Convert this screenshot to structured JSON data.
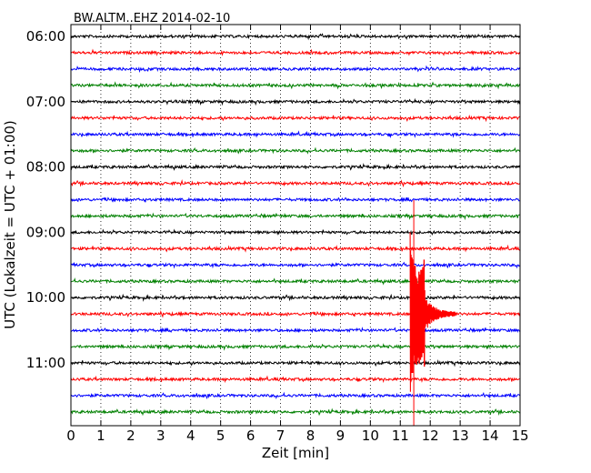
{
  "chart_data": {
    "type": "line",
    "title": "BW.ALTM..EHZ 2014-02-10",
    "xlabel": "Zeit  [min]",
    "ylabel": "UTC (Lokalzeit = UTC + 01:00)",
    "xlim": [
      0,
      15
    ],
    "x_ticks": [
      "0",
      "1",
      "2",
      "3",
      "4",
      "5",
      "6",
      "7",
      "8",
      "9",
      "10",
      "11",
      "12",
      "13",
      "14",
      "15"
    ],
    "y_tick_labels": [
      "06:00",
      "07:00",
      "08:00",
      "09:00",
      "10:00",
      "11:00"
    ],
    "y_tick_rows": [
      0,
      4,
      8,
      12,
      16,
      20
    ],
    "grid": "dotted vertical",
    "row_minutes": 15,
    "start_time": "06:00",
    "colors": [
      "#000000",
      "#ff0000",
      "#0000ff",
      "#008000"
    ],
    "series": [
      {
        "start": "06:00",
        "color": "#000000"
      },
      {
        "start": "06:15",
        "color": "#ff0000"
      },
      {
        "start": "06:30",
        "color": "#0000ff"
      },
      {
        "start": "06:45",
        "color": "#008000"
      },
      {
        "start": "07:00",
        "color": "#000000"
      },
      {
        "start": "07:15",
        "color": "#ff0000"
      },
      {
        "start": "07:30",
        "color": "#0000ff"
      },
      {
        "start": "07:45",
        "color": "#008000"
      },
      {
        "start": "08:00",
        "color": "#000000"
      },
      {
        "start": "08:15",
        "color": "#ff0000"
      },
      {
        "start": "08:30",
        "color": "#0000ff"
      },
      {
        "start": "08:45",
        "color": "#008000"
      },
      {
        "start": "09:00",
        "color": "#000000"
      },
      {
        "start": "09:15",
        "color": "#ff0000"
      },
      {
        "start": "09:30",
        "color": "#0000ff"
      },
      {
        "start": "09:45",
        "color": "#008000"
      },
      {
        "start": "10:00",
        "color": "#000000"
      },
      {
        "start": "10:15",
        "color": "#ff0000"
      },
      {
        "start": "10:30",
        "color": "#0000ff"
      },
      {
        "start": "10:45",
        "color": "#008000"
      },
      {
        "start": "11:00",
        "color": "#000000"
      },
      {
        "start": "11:15",
        "color": "#ff0000"
      },
      {
        "start": "11:30",
        "color": "#0000ff"
      },
      {
        "start": "11:45",
        "color": "#008000"
      }
    ],
    "event": {
      "row": 17,
      "time_min": 11.45,
      "time_utc": "10:26",
      "color": "#ff0000"
    }
  }
}
